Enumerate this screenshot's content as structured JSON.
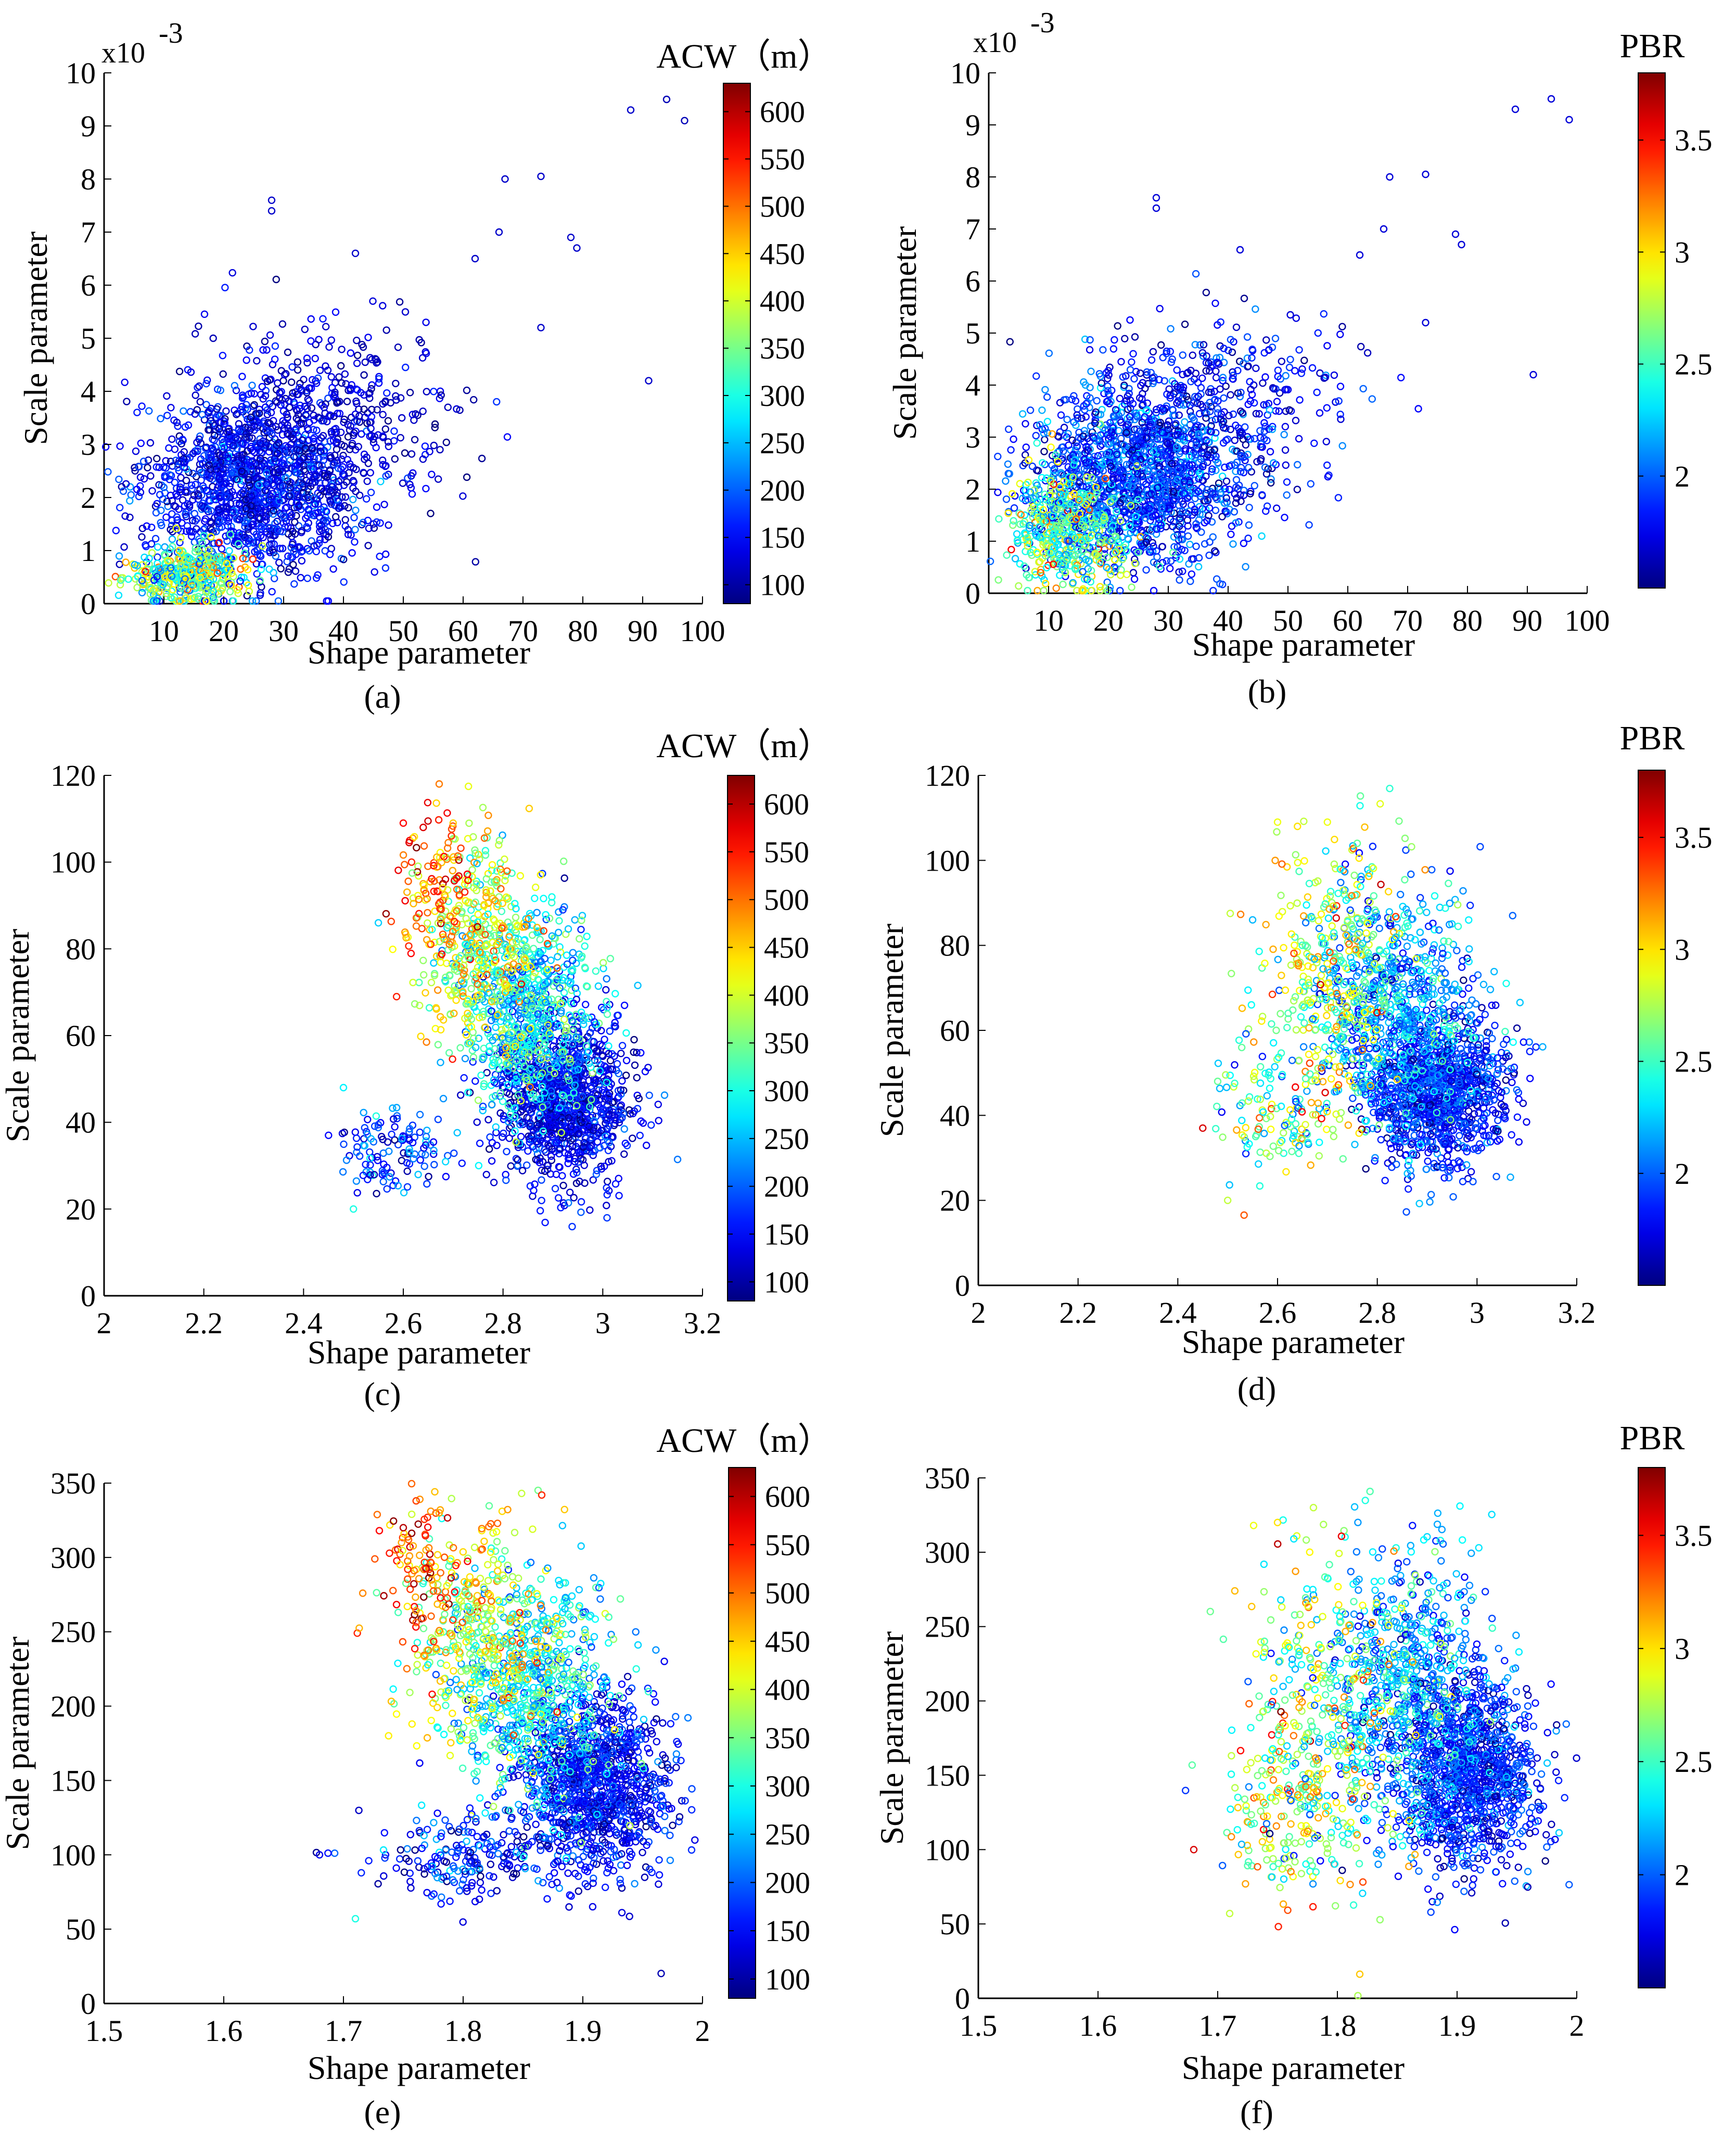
{
  "chart_data": [
    {
      "panel": "(a)",
      "type": "scatter",
      "xlabel": "Shape parameter",
      "ylabel": "Scale parameter",
      "y_exponent": "x10",
      "y_exponent_power": "-3",
      "xlim": [
        0,
        100
      ],
      "ylim": [
        0,
        10
      ],
      "xticks": [
        "10",
        "20",
        "30",
        "40",
        "50",
        "60",
        "70",
        "80",
        "90",
        "100"
      ],
      "yticks": [
        "0",
        "1",
        "2",
        "3",
        "4",
        "5",
        "6",
        "7",
        "8",
        "9",
        "10"
      ],
      "colorbar_title": "ACW（m）",
      "colorbar_range": [
        80,
        630
      ],
      "colorbar_ticks": [
        "100",
        "150",
        "200",
        "250",
        "300",
        "350",
        "400",
        "450",
        "500",
        "550",
        "600"
      ],
      "clusters": [
        {
          "x_mean": 25,
          "x_sd": 9,
          "y_mean": 2.3,
          "y_sd": 0.85,
          "c_mean": 150,
          "c_sd": 35,
          "n": 1400
        },
        {
          "x_mean": 14,
          "x_sd": 5,
          "y_mean": 0.55,
          "y_sd": 0.3,
          "c_mean": 330,
          "c_sd": 90,
          "n": 420
        },
        {
          "x_mean": 38,
          "x_sd": 10,
          "y_mean": 3.6,
          "y_sd": 0.9,
          "c_mean": 120,
          "c_sd": 25,
          "n": 360
        }
      ],
      "points": [
        {
          "x": 88,
          "y": 9.3,
          "c": 120
        },
        {
          "x": 94,
          "y": 9.5,
          "c": 110
        },
        {
          "x": 97,
          "y": 9.1,
          "c": 110
        },
        {
          "x": 28,
          "y": 7.6,
          "c": 120
        },
        {
          "x": 28,
          "y": 7.4,
          "c": 120
        },
        {
          "x": 67,
          "y": 8.0,
          "c": 120
        },
        {
          "x": 73,
          "y": 8.05,
          "c": 120
        },
        {
          "x": 78,
          "y": 6.9,
          "c": 120
        },
        {
          "x": 79,
          "y": 6.7,
          "c": 120
        },
        {
          "x": 91,
          "y": 4.2,
          "c": 120
        },
        {
          "x": 73,
          "y": 5.2,
          "c": 120
        },
        {
          "x": 42,
          "y": 6.6,
          "c": 120
        },
        {
          "x": 62,
          "y": 6.5,
          "c": 120
        },
        {
          "x": 66,
          "y": 7.0,
          "c": 120
        }
      ]
    },
    {
      "panel": "(b)",
      "type": "scatter",
      "xlabel": "Shape parameter",
      "ylabel": "Scale parameter",
      "y_exponent": "x10",
      "y_exponent_power": "-3",
      "xlim": [
        0,
        100
      ],
      "ylim": [
        0,
        10
      ],
      "xticks": [
        "10",
        "20",
        "30",
        "40",
        "50",
        "60",
        "70",
        "80",
        "90",
        "100"
      ],
      "yticks": [
        "0",
        "1",
        "2",
        "3",
        "4",
        "5",
        "6",
        "7",
        "8",
        "9",
        "10"
      ],
      "colorbar_title": "PBR",
      "colorbar_range": [
        1.5,
        3.8
      ],
      "colorbar_ticks": [
        "2",
        "2.5",
        "3",
        "3.5"
      ],
      "clusters": [
        {
          "x_mean": 25,
          "x_sd": 9,
          "y_mean": 2.3,
          "y_sd": 0.85,
          "c_mean": 1.9,
          "c_sd": 0.2,
          "n": 1400
        },
        {
          "x_mean": 13,
          "x_sd": 5,
          "y_mean": 1.2,
          "y_sd": 0.6,
          "c_mean": 2.55,
          "c_sd": 0.35,
          "n": 480
        },
        {
          "x_mean": 38,
          "x_sd": 10,
          "y_mean": 3.6,
          "y_sd": 0.9,
          "c_mean": 1.75,
          "c_sd": 0.15,
          "n": 360
        }
      ],
      "points": [
        {
          "x": 88,
          "y": 9.3,
          "c": 1.7
        },
        {
          "x": 94,
          "y": 9.5,
          "c": 1.7
        },
        {
          "x": 97,
          "y": 9.1,
          "c": 1.7
        },
        {
          "x": 28,
          "y": 7.6,
          "c": 1.7
        },
        {
          "x": 28,
          "y": 7.4,
          "c": 1.7
        },
        {
          "x": 67,
          "y": 8.0,
          "c": 1.7
        },
        {
          "x": 73,
          "y": 8.05,
          "c": 1.7
        },
        {
          "x": 78,
          "y": 6.9,
          "c": 1.7
        },
        {
          "x": 79,
          "y": 6.7,
          "c": 1.7
        },
        {
          "x": 91,
          "y": 4.2,
          "c": 1.7
        },
        {
          "x": 73,
          "y": 5.2,
          "c": 1.7
        },
        {
          "x": 42,
          "y": 6.6,
          "c": 1.7
        },
        {
          "x": 62,
          "y": 6.5,
          "c": 1.7
        },
        {
          "x": 66,
          "y": 7.0,
          "c": 1.7
        }
      ]
    },
    {
      "panel": "(c)",
      "type": "scatter",
      "xlabel": "Shape parameter",
      "ylabel": "Scale parameter",
      "xlim": [
        2,
        3.2
      ],
      "ylim": [
        0,
        120
      ],
      "xticks": [
        "2",
        "2.2",
        "2.4",
        "2.6",
        "2.8",
        "3",
        "3.2"
      ],
      "yticks": [
        "0",
        "20",
        "40",
        "60",
        "80",
        "100",
        "120"
      ],
      "colorbar_title": "ACW（m）",
      "colorbar_range": [
        80,
        630
      ],
      "colorbar_ticks": [
        "100",
        "150",
        "200",
        "250",
        "300",
        "350",
        "400",
        "450",
        "500",
        "550",
        "600"
      ],
      "clusters": [
        {
          "x_mean": 2.92,
          "x_sd": 0.07,
          "y_mean": 45,
          "y_sd": 9,
          "c_mean": 140,
          "c_sd": 35,
          "n": 1100
        },
        {
          "x_mean": 2.85,
          "x_sd": 0.07,
          "y_mean": 66,
          "y_sd": 12,
          "c_mean": 280,
          "c_sd": 60,
          "n": 700
        },
        {
          "x_mean": 2.75,
          "x_sd": 0.06,
          "y_mean": 82,
          "y_sd": 12,
          "c_mean": 400,
          "c_sd": 70,
          "n": 380
        },
        {
          "x_mean": 2.66,
          "x_sd": 0.04,
          "y_mean": 95,
          "y_sd": 9,
          "c_mean": 520,
          "c_sd": 60,
          "n": 90
        },
        {
          "x_mean": 2.58,
          "x_sd": 0.06,
          "y_mean": 33,
          "y_sd": 5,
          "c_mean": 180,
          "c_sd": 50,
          "n": 120
        }
      ],
      "points": [
        {
          "x": 2.45,
          "y": 37,
          "c": 150
        },
        {
          "x": 2.5,
          "y": 20,
          "c": 300
        },
        {
          "x": 2.48,
          "y": 48,
          "c": 280
        },
        {
          "x": 2.55,
          "y": 86,
          "c": 260
        },
        {
          "x": 2.6,
          "y": 109,
          "c": 560
        },
        {
          "x": 2.64,
          "y": 108,
          "c": 580
        },
        {
          "x": 2.7,
          "y": 109,
          "c": 450
        }
      ]
    },
    {
      "panel": "(d)",
      "type": "scatter",
      "xlabel": "Shape parameter",
      "ylabel": "Scale parameter",
      "xlim": [
        2,
        3.2
      ],
      "ylim": [
        0,
        120
      ],
      "xticks": [
        "2",
        "2.2",
        "2.4",
        "2.6",
        "2.8",
        "3",
        "3.2"
      ],
      "yticks": [
        "0",
        "20",
        "40",
        "60",
        "80",
        "100",
        "120"
      ],
      "colorbar_title": "PBR",
      "colorbar_range": [
        1.5,
        3.8
      ],
      "colorbar_ticks": [
        "2",
        "2.5",
        "3",
        "3.5"
      ],
      "clusters": [
        {
          "x_mean": 2.92,
          "x_sd": 0.07,
          "y_mean": 45,
          "y_sd": 9,
          "c_mean": 1.85,
          "c_sd": 0.18,
          "n": 1100
        },
        {
          "x_mean": 2.84,
          "x_sd": 0.08,
          "y_mean": 66,
          "y_sd": 13,
          "c_mean": 2.15,
          "c_sd": 0.25,
          "n": 700
        },
        {
          "x_mean": 2.72,
          "x_sd": 0.07,
          "y_mean": 72,
          "y_sd": 18,
          "c_mean": 2.7,
          "c_sd": 0.35,
          "n": 380
        },
        {
          "x_mean": 2.6,
          "x_sd": 0.06,
          "y_mean": 40,
          "y_sd": 10,
          "c_mean": 2.6,
          "c_sd": 0.4,
          "n": 120
        }
      ],
      "points": [
        {
          "x": 2.45,
          "y": 37,
          "c": 3.6
        },
        {
          "x": 2.5,
          "y": 20,
          "c": 2.8
        },
        {
          "x": 2.48,
          "y": 48,
          "c": 2.6
        },
        {
          "x": 2.55,
          "y": 86,
          "c": 2.2
        },
        {
          "x": 2.6,
          "y": 109,
          "c": 2.9
        },
        {
          "x": 2.64,
          "y": 108,
          "c": 3.0
        },
        {
          "x": 2.7,
          "y": 109,
          "c": 2.9
        }
      ]
    },
    {
      "panel": "(e)",
      "type": "scatter",
      "xlabel": "Shape parameter",
      "ylabel": "Scale parameter",
      "xlim": [
        1.5,
        2
      ],
      "ylim": [
        0,
        350
      ],
      "xticks": [
        "1.5",
        "1.6",
        "1.7",
        "1.8",
        "1.9",
        "2"
      ],
      "yticks": [
        "0",
        "50",
        "100",
        "150",
        "200",
        "250",
        "300",
        "350"
      ],
      "colorbar_title": "ACW（m）",
      "colorbar_range": [
        80,
        630
      ],
      "colorbar_ticks": [
        "100",
        "150",
        "200",
        "250",
        "300",
        "350",
        "400",
        "450",
        "500",
        "550",
        "600"
      ],
      "clusters": [
        {
          "x_mean": 1.91,
          "x_sd": 0.03,
          "y_mean": 145,
          "y_sd": 30,
          "c_mean": 150,
          "c_sd": 35,
          "n": 1100
        },
        {
          "x_mean": 1.86,
          "x_sd": 0.035,
          "y_mean": 210,
          "y_sd": 40,
          "c_mean": 280,
          "c_sd": 60,
          "n": 700
        },
        {
          "x_mean": 1.81,
          "x_sd": 0.03,
          "y_mean": 250,
          "y_sd": 40,
          "c_mean": 400,
          "c_sd": 70,
          "n": 360
        },
        {
          "x_mean": 1.76,
          "x_sd": 0.02,
          "y_mean": 290,
          "y_sd": 25,
          "c_mean": 530,
          "c_sd": 60,
          "n": 90
        },
        {
          "x_mean": 1.8,
          "x_sd": 0.04,
          "y_mean": 100,
          "y_sd": 15,
          "c_mean": 170,
          "c_sd": 50,
          "n": 200
        }
      ],
      "points": [
        {
          "x": 1.68,
          "y": 100,
          "c": 140
        },
        {
          "x": 1.71,
          "y": 57,
          "c": 300
        },
        {
          "x": 1.73,
          "y": 318,
          "c": 560
        },
        {
          "x": 1.75,
          "y": 320,
          "c": 600
        },
        {
          "x": 1.78,
          "y": 330,
          "c": 470
        }
      ]
    },
    {
      "panel": "(f)",
      "type": "scatter",
      "xlabel": "Shape parameter",
      "ylabel": "Scale parameter",
      "xlim": [
        1.5,
        2
      ],
      "ylim": [
        0,
        350
      ],
      "xticks": [
        "1.5",
        "1.6",
        "1.7",
        "1.8",
        "1.9",
        "2"
      ],
      "yticks": [
        "0",
        "50",
        "100",
        "150",
        "200",
        "250",
        "300",
        "350"
      ],
      "colorbar_title": "PBR",
      "colorbar_range": [
        1.5,
        3.8
      ],
      "colorbar_ticks": [
        "2",
        "2.5",
        "3",
        "3.5"
      ],
      "clusters": [
        {
          "x_mean": 1.91,
          "x_sd": 0.03,
          "y_mean": 150,
          "y_sd": 32,
          "c_mean": 1.85,
          "c_sd": 0.18,
          "n": 1100
        },
        {
          "x_mean": 1.86,
          "x_sd": 0.035,
          "y_mean": 210,
          "y_sd": 45,
          "c_mean": 2.15,
          "c_sd": 0.25,
          "n": 700
        },
        {
          "x_mean": 1.79,
          "x_sd": 0.035,
          "y_mean": 200,
          "y_sd": 60,
          "c_mean": 2.7,
          "c_sd": 0.35,
          "n": 360
        },
        {
          "x_mean": 1.76,
          "x_sd": 0.03,
          "y_mean": 120,
          "y_sd": 25,
          "c_mean": 2.6,
          "c_sd": 0.4,
          "n": 160
        }
      ],
      "points": [
        {
          "x": 1.68,
          "y": 100,
          "c": 3.6
        },
        {
          "x": 1.71,
          "y": 57,
          "c": 2.8
        },
        {
          "x": 1.73,
          "y": 318,
          "c": 2.9
        },
        {
          "x": 1.75,
          "y": 320,
          "c": 3.0
        },
        {
          "x": 1.78,
          "y": 330,
          "c": 2.8
        }
      ]
    }
  ]
}
